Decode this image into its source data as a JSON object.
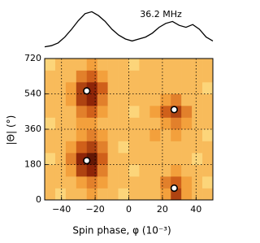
{
  "chart_data": [
    {
      "type": "line",
      "annotation": "36.2 MHz",
      "color": "#000000",
      "x": [
        -50,
        -46,
        -42,
        -38,
        -34,
        -30,
        -26,
        -22,
        -18,
        -14,
        -10,
        -6,
        -2,
        2,
        6,
        10,
        14,
        18,
        22,
        26,
        30,
        34,
        38,
        42,
        46,
        50
      ],
      "values": [
        0.05,
        0.08,
        0.15,
        0.3,
        0.5,
        0.72,
        0.9,
        0.95,
        0.85,
        0.7,
        0.5,
        0.35,
        0.25,
        0.2,
        0.25,
        0.3,
        0.4,
        0.55,
        0.65,
        0.7,
        0.6,
        0.55,
        0.62,
        0.5,
        0.3,
        0.2
      ],
      "xlim": [
        -50,
        50
      ],
      "ylim": [
        0,
        1
      ]
    },
    {
      "type": "heatmap",
      "xlabel": "Spin phase, φ (10⁻³)",
      "ylabel": "|Θ| (°)",
      "xlim": [
        -50,
        50
      ],
      "ylim": [
        0,
        720
      ],
      "xticks": [
        {
          "value": -40,
          "label": "−40"
        },
        {
          "value": -20,
          "label": "−20"
        },
        0,
        20,
        40
      ],
      "yticks": [
        0,
        180,
        360,
        540,
        720
      ],
      "grid": true,
      "z": [
        [
          3,
          2,
          3,
          3,
          4,
          3,
          3,
          2,
          3,
          3,
          3,
          4,
          7,
          4,
          3,
          3
        ],
        [
          3,
          3,
          3,
          4,
          5,
          4,
          3,
          3,
          3,
          3,
          3,
          5,
          6,
          4,
          3,
          2
        ],
        [
          3,
          3,
          4,
          7,
          8,
          5,
          3,
          3,
          2,
          3,
          3,
          3,
          4,
          3,
          3,
          3
        ],
        [
          2,
          3,
          5,
          8,
          9,
          6,
          3,
          3,
          3,
          3,
          3,
          3,
          3,
          3,
          2,
          3
        ],
        [
          3,
          3,
          4,
          6,
          7,
          5,
          3,
          2,
          3,
          3,
          3,
          3,
          3,
          3,
          3,
          3
        ],
        [
          3,
          3,
          3,
          4,
          5,
          4,
          3,
          3,
          3,
          3,
          4,
          3,
          4,
          3,
          3,
          2
        ],
        [
          2,
          3,
          3,
          4,
          4,
          3,
          3,
          3,
          3,
          3,
          3,
          4,
          5,
          4,
          3,
          3
        ],
        [
          3,
          3,
          3,
          5,
          6,
          4,
          3,
          3,
          2,
          3,
          4,
          6,
          7,
          5,
          3,
          3
        ],
        [
          3,
          3,
          4,
          7,
          8,
          5,
          3,
          3,
          3,
          3,
          3,
          4,
          5,
          3,
          3,
          3
        ],
        [
          3,
          3,
          4,
          7,
          8,
          6,
          3,
          3,
          3,
          3,
          3,
          3,
          3,
          3,
          3,
          2
        ],
        [
          3,
          3,
          3,
          5,
          6,
          4,
          3,
          3,
          3,
          3,
          3,
          3,
          3,
          3,
          3,
          3
        ],
        [
          2,
          3,
          3,
          3,
          4,
          3,
          3,
          3,
          2,
          3,
          3,
          3,
          3,
          3,
          3,
          3
        ]
      ],
      "zlim": [
        0,
        10
      ],
      "colors": [
        "#fff7c0",
        "#fcd57a",
        "#f3a03c",
        "#d0601a",
        "#8e2508",
        "#3a0a02"
      ],
      "markers": {
        "x": [
          -25,
          -25,
          27,
          27
        ],
        "y": [
          555,
          200,
          460,
          60
        ],
        "color": "#ffffff"
      }
    }
  ]
}
